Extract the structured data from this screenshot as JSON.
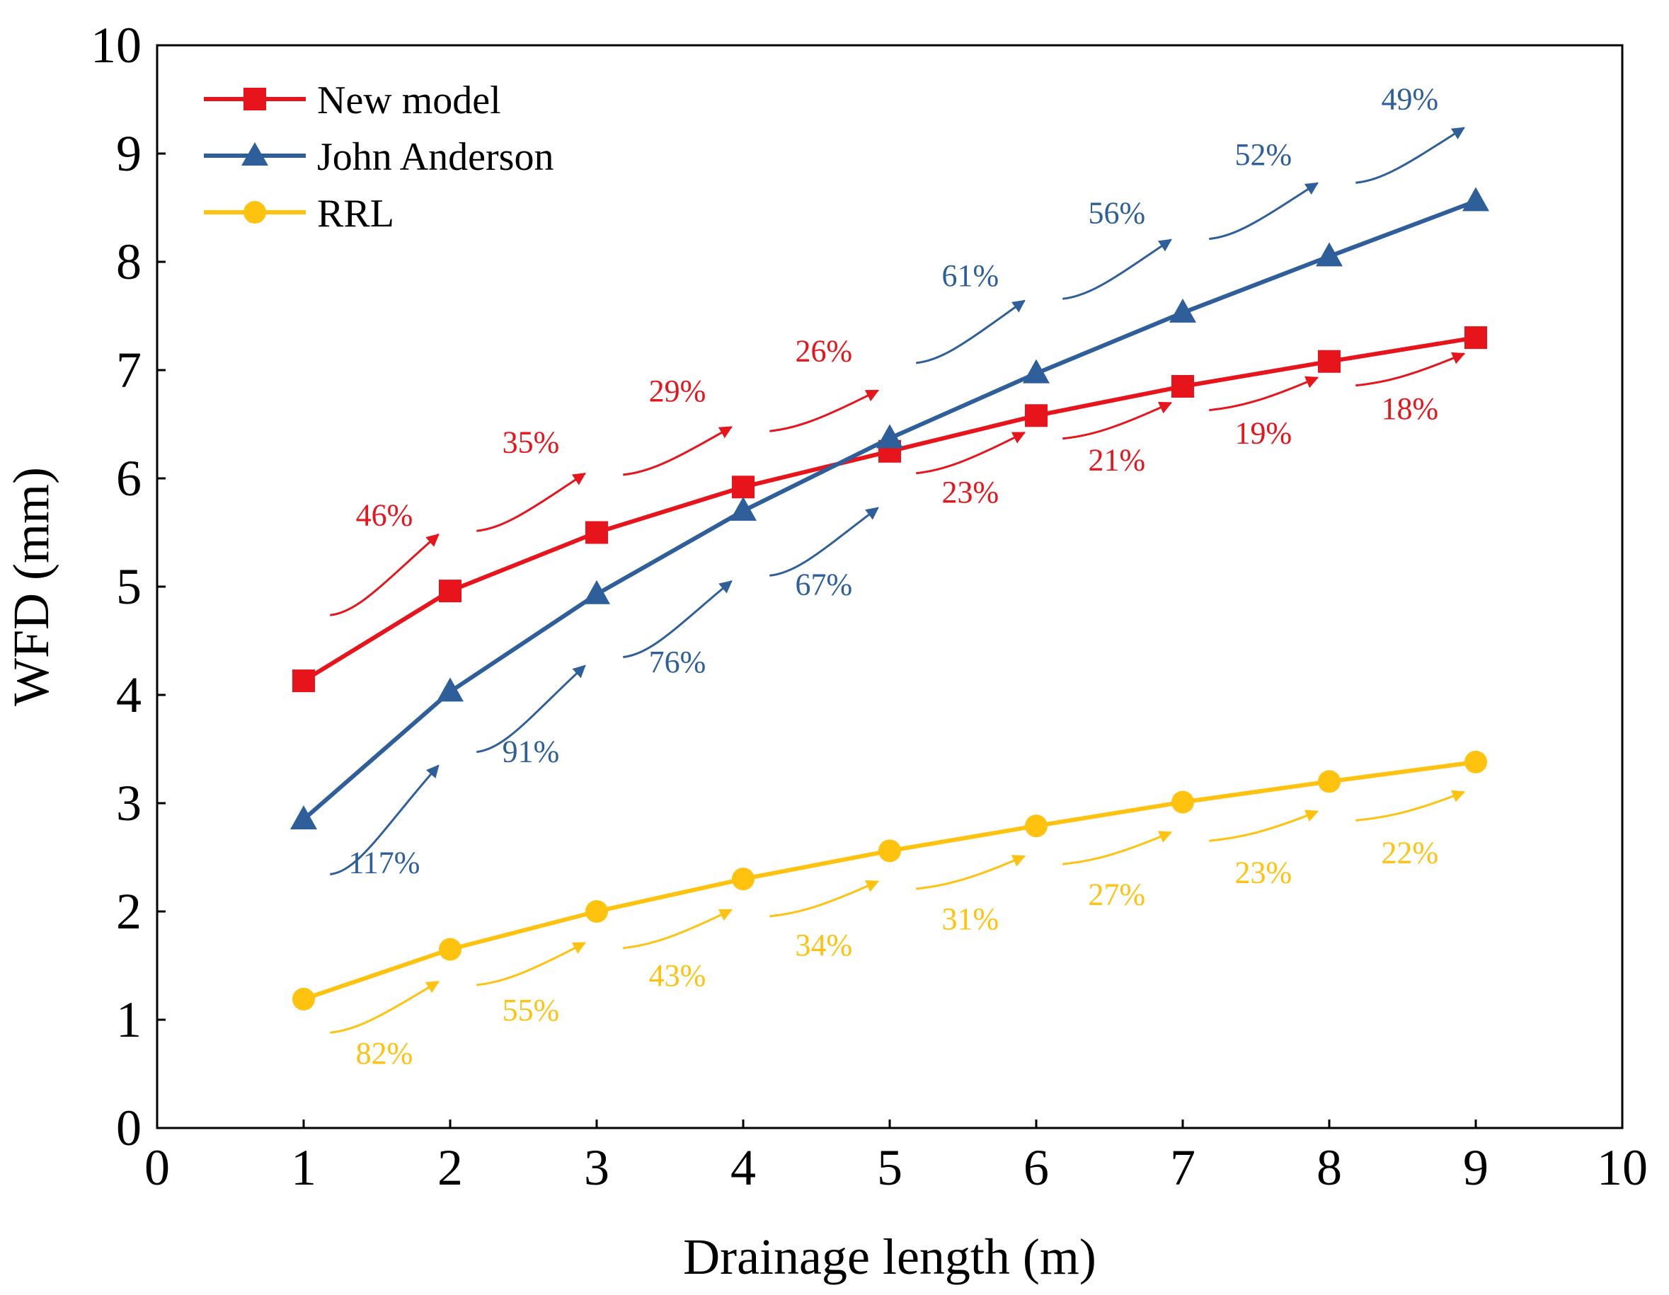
{
  "chart_data": {
    "type": "line",
    "title": "",
    "xlabel": "Drainage length  (m)",
    "ylabel": "WFD (mm)",
    "xlim": [
      0,
      10
    ],
    "ylim": [
      0,
      10
    ],
    "xticks": [
      "0",
      "1",
      "2",
      "3",
      "4",
      "5",
      "6",
      "7",
      "8",
      "9",
      "10"
    ],
    "yticks": [
      "0",
      "1",
      "2",
      "3",
      "4",
      "5",
      "6",
      "7",
      "8",
      "9",
      "10"
    ],
    "grid": false,
    "legend_position": "top-left",
    "x": [
      1,
      2,
      3,
      4,
      5,
      6,
      7,
      8,
      9
    ],
    "series": [
      {
        "name": "New model",
        "color": "#E8141C",
        "marker": "square",
        "values": [
          4.13,
          4.96,
          5.5,
          5.92,
          6.25,
          6.58,
          6.85,
          7.08,
          7.3
        ]
      },
      {
        "name": "John Anderson",
        "color": "#2E5F9A",
        "marker": "triangle",
        "values": [
          2.85,
          4.03,
          4.93,
          5.7,
          6.37,
          6.97,
          7.53,
          8.05,
          8.56
        ]
      },
      {
        "name": "RRL",
        "color": "#FFC20E",
        "marker": "circle",
        "values": [
          1.19,
          1.65,
          2.0,
          2.3,
          2.56,
          2.79,
          3.01,
          3.2,
          3.38
        ]
      }
    ],
    "annotations": [
      {
        "series": "New model",
        "text": "46%"
      },
      {
        "series": "New model",
        "text": "35%"
      },
      {
        "series": "New model",
        "text": "29%"
      },
      {
        "series": "New model",
        "text": "26%"
      },
      {
        "series": "New model",
        "text": "23%"
      },
      {
        "series": "New model",
        "text": "21%"
      },
      {
        "series": "New model",
        "text": "19%"
      },
      {
        "series": "New model",
        "text": "18%"
      },
      {
        "series": "John Anderson",
        "text": "117%"
      },
      {
        "series": "John Anderson",
        "text": "91%"
      },
      {
        "series": "John Anderson",
        "text": "76%"
      },
      {
        "series": "John Anderson",
        "text": "67%"
      },
      {
        "series": "John Anderson",
        "text": "61%"
      },
      {
        "series": "John Anderson",
        "text": "56%"
      },
      {
        "series": "John Anderson",
        "text": "52%"
      },
      {
        "series": "John Anderson",
        "text": "49%"
      },
      {
        "series": "RRL",
        "text": "82%"
      },
      {
        "series": "RRL",
        "text": "55%"
      },
      {
        "series": "RRL",
        "text": "43%"
      },
      {
        "series": "RRL",
        "text": "34%"
      },
      {
        "series": "RRL",
        "text": "31%"
      },
      {
        "series": "RRL",
        "text": "27%"
      },
      {
        "series": "RRL",
        "text": "23%"
      },
      {
        "series": "RRL",
        "text": "22%"
      }
    ]
  }
}
